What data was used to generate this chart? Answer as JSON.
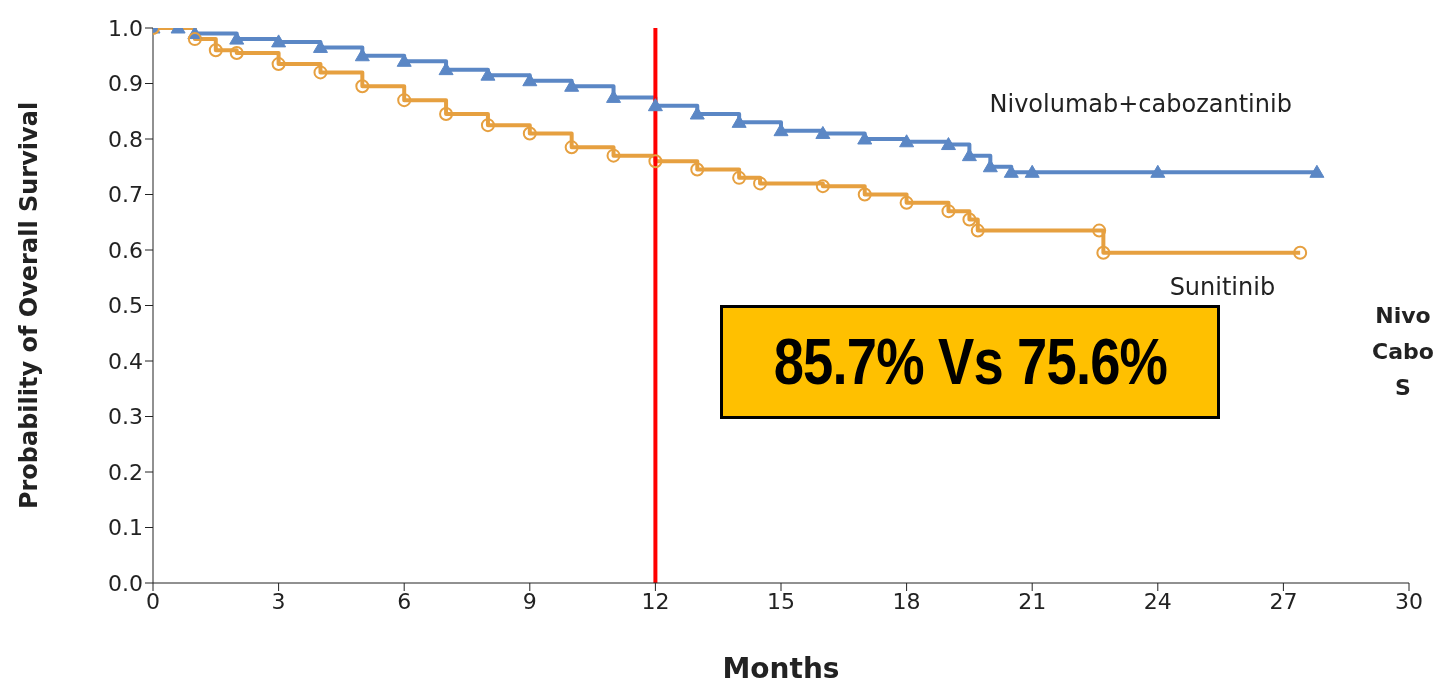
{
  "chart_data": {
    "type": "step",
    "ylabel": "Probability of Overall Survival",
    "xlabel": "Months",
    "xlim": [
      0,
      30
    ],
    "xticks": [
      0,
      3,
      6,
      9,
      12,
      15,
      18,
      21,
      24,
      27,
      30
    ],
    "ylim": [
      0,
      1
    ],
    "yticks": [
      {
        "value": 0,
        "label": "0.0"
      },
      0.1,
      0.2,
      0.3,
      0.4,
      0.5,
      0.6,
      0.7,
      0.8,
      0.9,
      {
        "value": 1,
        "label": "1.0"
      }
    ],
    "grid": false,
    "legend": false,
    "line_style": "solid",
    "series": [
      {
        "name": "Nivolumab+cabozantinib",
        "color": "#5b87c5",
        "marker": "triangle",
        "x": [
          0,
          0.6,
          1,
          2,
          3,
          4,
          5,
          6,
          7,
          8,
          9,
          10,
          11,
          12,
          13,
          14,
          15,
          16,
          17,
          18,
          19,
          19.5,
          20,
          20.5,
          21,
          24,
          27.8
        ],
        "values": [
          1.0,
          1.0,
          0.99,
          0.98,
          0.975,
          0.965,
          0.95,
          0.94,
          0.925,
          0.915,
          0.905,
          0.895,
          0.875,
          0.86,
          0.845,
          0.83,
          0.815,
          0.81,
          0.8,
          0.795,
          0.79,
          0.77,
          0.75,
          0.74,
          0.74,
          0.74,
          0.74
        ]
      },
      {
        "name": "Sunitinib",
        "color": "#e6a040",
        "marker": "circle",
        "x": [
          0,
          1,
          1.5,
          2,
          3,
          4,
          5,
          6,
          7,
          8,
          9,
          10,
          11,
          12,
          13,
          14,
          14.5,
          16,
          17,
          18,
          19,
          19.5,
          19.7,
          22.6,
          22.7,
          27.4
        ],
        "values": [
          1.0,
          0.98,
          0.96,
          0.955,
          0.935,
          0.92,
          0.895,
          0.87,
          0.845,
          0.825,
          0.81,
          0.785,
          0.77,
          0.76,
          0.745,
          0.73,
          0.72,
          0.715,
          0.7,
          0.685,
          0.67,
          0.655,
          0.635,
          0.635,
          0.595,
          0.595
        ]
      }
    ],
    "ref_lines": [
      {
        "axis": "x",
        "value": 12,
        "color": "#ff0000"
      }
    ],
    "annotations": [
      "85.7% Vs 75.6%",
      "Nivo",
      "Cabo",
      "S"
    ]
  }
}
